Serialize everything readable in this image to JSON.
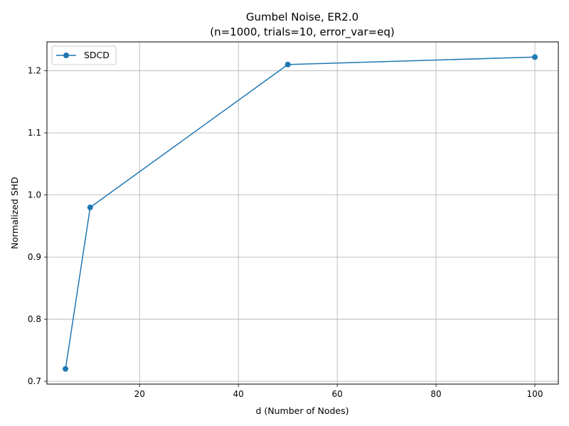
{
  "chart_data": {
    "type": "line",
    "title": "Gumbel Noise, ER2.0",
    "subtitle": "(n=1000, trials=10, error_var=eq)",
    "xlabel": "d (Number of Nodes)",
    "ylabel": "Normalized SHD",
    "xlim": [
      1.25,
      104.75
    ],
    "ylim": [
      0.6955,
      1.2465
    ],
    "xticks": [
      20,
      40,
      60,
      80,
      100
    ],
    "yticks": [
      0.7,
      0.8,
      0.9,
      1.0,
      1.1,
      1.2
    ],
    "xtick_labels": [
      "20",
      "40",
      "60",
      "80",
      "100"
    ],
    "ytick_labels": [
      "0.7",
      "0.8",
      "0.9",
      "1.0",
      "1.1",
      "1.2"
    ],
    "grid": true,
    "legend_position": "top-left",
    "series": [
      {
        "name": "SDCD",
        "color": "#1f77b4",
        "marker": "circle",
        "x": [
          5,
          10,
          50,
          100
        ],
        "y": [
          0.72,
          0.98,
          1.21,
          1.222
        ]
      }
    ]
  }
}
